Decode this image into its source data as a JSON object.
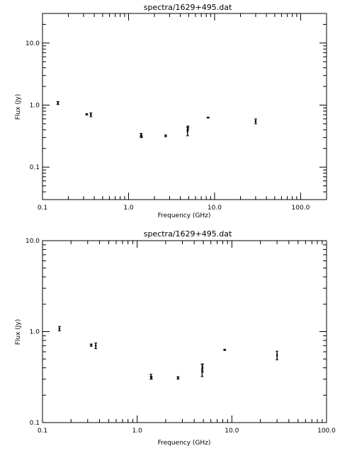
{
  "chart_data": [
    {
      "type": "scatter",
      "title": "spectra/1629+495.dat",
      "xlabel": "Frequency (GHz)",
      "ylabel": "Flux (Jy)",
      "xscale": "log",
      "yscale": "log",
      "xlim": [
        0.1,
        200
      ],
      "ylim": [
        0.03,
        30
      ],
      "grid": false,
      "x_ticks": [
        {
          "value": 0.1,
          "label": "0.1"
        },
        {
          "value": 1,
          "label": "1.0"
        },
        {
          "value": 10,
          "label": "10.0"
        },
        {
          "value": 100,
          "label": "100.0"
        }
      ],
      "y_ticks": [
        {
          "value": 0.1,
          "label": "0.1"
        },
        {
          "value": 1,
          "label": "1.0"
        },
        {
          "value": 10,
          "label": "10.0"
        }
      ],
      "points": [
        {
          "x": 0.151,
          "y": 1.08,
          "yerr": 0.06
        },
        {
          "x": 0.327,
          "y": 0.71,
          "yerr": 0.02
        },
        {
          "x": 0.365,
          "y": 0.7,
          "yerr": 0.05
        },
        {
          "x": 1.4,
          "y": 0.33,
          "yerr": 0.02
        },
        {
          "x": 1.41,
          "y": 0.31,
          "yerr": 0.01
        },
        {
          "x": 2.7,
          "y": 0.32,
          "yerr": 0.01
        },
        {
          "x": 4.85,
          "y": 0.38,
          "yerr": 0.06
        },
        {
          "x": 4.9,
          "y": 0.43,
          "yerr": 0.03
        },
        {
          "x": 8.4,
          "y": 0.63,
          "yerr": 0.01
        },
        {
          "x": 30.0,
          "y": 0.55,
          "yerr": 0.05
        }
      ]
    },
    {
      "type": "scatter",
      "title": "spectra/1629+495.dat",
      "xlabel": "Frequency (GHz)",
      "ylabel": "Flux (Jy)",
      "xscale": "log",
      "yscale": "log",
      "xlim": [
        0.1,
        100
      ],
      "ylim": [
        0.1,
        10
      ],
      "grid": false,
      "x_ticks": [
        {
          "value": 0.1,
          "label": "0.1"
        },
        {
          "value": 1,
          "label": "1.0"
        },
        {
          "value": 10,
          "label": "10.0"
        },
        {
          "value": 100,
          "label": "100.0"
        }
      ],
      "y_ticks": [
        {
          "value": 0.1,
          "label": "0.1"
        },
        {
          "value": 1,
          "label": "1.0"
        },
        {
          "value": 10,
          "label": "10.0"
        }
      ],
      "points": [
        {
          "x": 0.151,
          "y": 1.08,
          "yerr": 0.06
        },
        {
          "x": 0.327,
          "y": 0.71,
          "yerr": 0.02
        },
        {
          "x": 0.365,
          "y": 0.7,
          "yerr": 0.05
        },
        {
          "x": 1.4,
          "y": 0.32,
          "yerr": 0.02
        },
        {
          "x": 1.41,
          "y": 0.31,
          "yerr": 0.01
        },
        {
          "x": 2.7,
          "y": 0.31,
          "yerr": 0.01
        },
        {
          "x": 4.85,
          "y": 0.38,
          "yerr": 0.06
        },
        {
          "x": 4.9,
          "y": 0.4,
          "yerr": 0.04
        },
        {
          "x": 8.4,
          "y": 0.63,
          "yerr": 0.01
        },
        {
          "x": 30.0,
          "y": 0.55,
          "yerr": 0.06
        }
      ]
    }
  ]
}
